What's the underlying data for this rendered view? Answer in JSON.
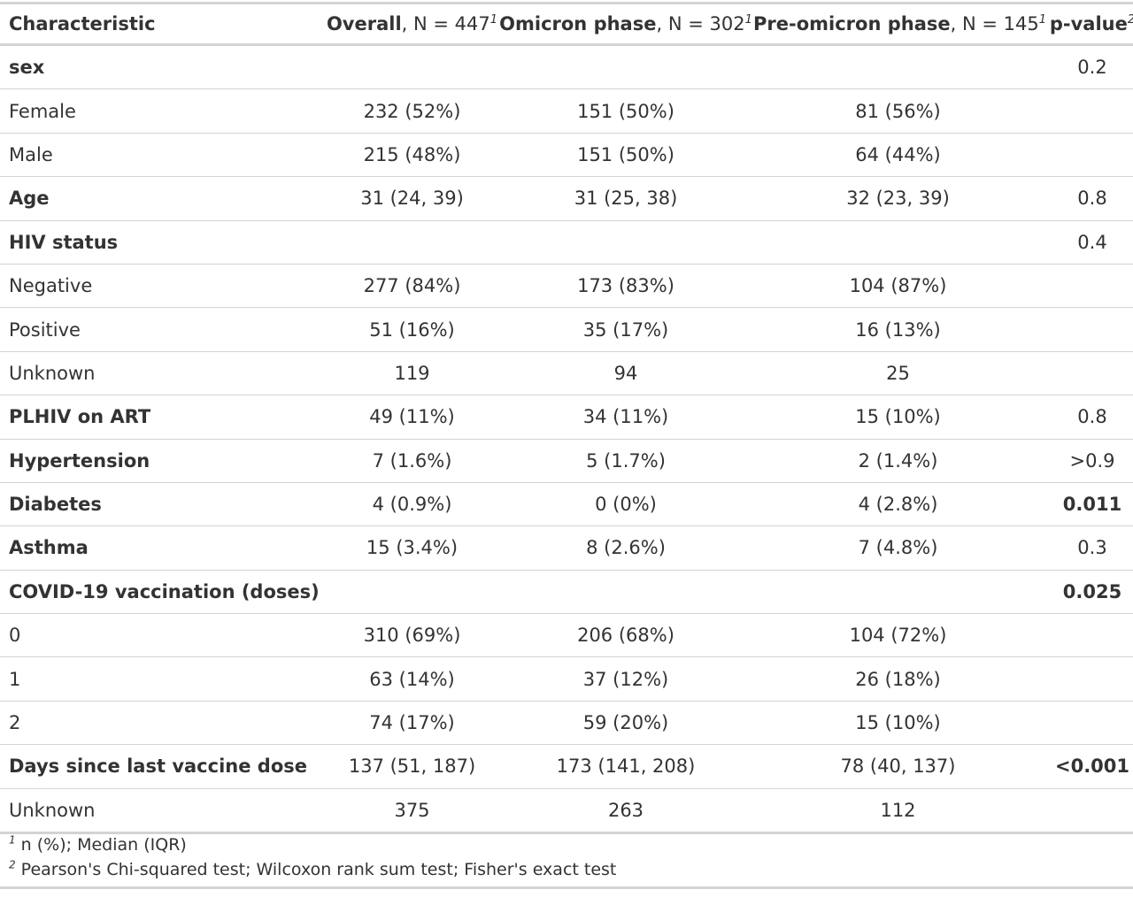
{
  "table": {
    "headers": [
      {
        "bold": "Characteristic",
        "rest": "",
        "sup": ""
      },
      {
        "bold": "Overall",
        "rest": ", N = 447",
        "sup": "1"
      },
      {
        "bold": "Omicron phase",
        "rest": ", N = 302",
        "sup": "1"
      },
      {
        "bold": "Pre-omicron phase",
        "rest": ", N = 145",
        "sup": "1"
      },
      {
        "bold": "p-value",
        "rest": "",
        "sup": "2"
      }
    ],
    "rows": [
      {
        "label": "sex",
        "level": "group",
        "overall": "",
        "omicron": "",
        "pre": "",
        "p": "0.2",
        "p_bold": false
      },
      {
        "label": "Female",
        "level": "sub",
        "overall": "232 (52%)",
        "omicron": "151 (50%)",
        "pre": "81 (56%)",
        "p": "",
        "p_bold": false
      },
      {
        "label": "Male",
        "level": "sub",
        "overall": "215 (48%)",
        "omicron": "151 (50%)",
        "pre": "64 (44%)",
        "p": "",
        "p_bold": false
      },
      {
        "label": "Age",
        "level": "group",
        "overall": "31 (24, 39)",
        "omicron": "31 (25, 38)",
        "pre": "32 (23, 39)",
        "p": "0.8",
        "p_bold": false
      },
      {
        "label": "HIV status",
        "level": "group",
        "overall": "",
        "omicron": "",
        "pre": "",
        "p": "0.4",
        "p_bold": false
      },
      {
        "label": "Negative",
        "level": "sub",
        "overall": "277 (84%)",
        "omicron": "173 (83%)",
        "pre": "104 (87%)",
        "p": "",
        "p_bold": false
      },
      {
        "label": "Positive",
        "level": "sub",
        "overall": "51 (16%)",
        "omicron": "35 (17%)",
        "pre": "16 (13%)",
        "p": "",
        "p_bold": false
      },
      {
        "label": "Unknown",
        "level": "sub",
        "overall": "119",
        "omicron": "94",
        "pre": "25",
        "p": "",
        "p_bold": false
      },
      {
        "label": "PLHIV on ART",
        "level": "group",
        "overall": "49 (11%)",
        "omicron": "34 (11%)",
        "pre": "15 (10%)",
        "p": "0.8",
        "p_bold": false
      },
      {
        "label": "Hypertension",
        "level": "group",
        "overall": "7 (1.6%)",
        "omicron": "5 (1.7%)",
        "pre": "2 (1.4%)",
        "p": ">0.9",
        "p_bold": false
      },
      {
        "label": "Diabetes",
        "level": "group",
        "overall": "4 (0.9%)",
        "omicron": "0 (0%)",
        "pre": "4 (2.8%)",
        "p": "0.011",
        "p_bold": true
      },
      {
        "label": "Asthma",
        "level": "group",
        "overall": "15 (3.4%)",
        "omicron": "8 (2.6%)",
        "pre": "7 (4.8%)",
        "p": "0.3",
        "p_bold": false
      },
      {
        "label": "COVID-19 vaccination (doses)",
        "level": "group",
        "overall": "",
        "omicron": "",
        "pre": "",
        "p": "0.025",
        "p_bold": true
      },
      {
        "label": "0",
        "level": "sub",
        "overall": "310 (69%)",
        "omicron": "206 (68%)",
        "pre": "104 (72%)",
        "p": "",
        "p_bold": false
      },
      {
        "label": "1",
        "level": "sub",
        "overall": "63 (14%)",
        "omicron": "37 (12%)",
        "pre": "26 (18%)",
        "p": "",
        "p_bold": false
      },
      {
        "label": "2",
        "level": "sub",
        "overall": "74 (17%)",
        "omicron": "59 (20%)",
        "pre": "15 (10%)",
        "p": "",
        "p_bold": false
      },
      {
        "label": "Days since last vaccine dose",
        "level": "group",
        "overall": "137 (51, 187)",
        "omicron": "173 (141, 208)",
        "pre": "78 (40, 137)",
        "p": "<0.001",
        "p_bold": true
      },
      {
        "label": "Unknown",
        "level": "sub",
        "overall": "375",
        "omicron": "263",
        "pre": "112",
        "p": "",
        "p_bold": false
      }
    ]
  },
  "footnotes": [
    {
      "sup": "1",
      "text": " n (%); Median (IQR)"
    },
    {
      "sup": "2",
      "text": " Pearson's Chi-squared test; Wilcoxon rank sum test; Fisher's exact test"
    }
  ]
}
